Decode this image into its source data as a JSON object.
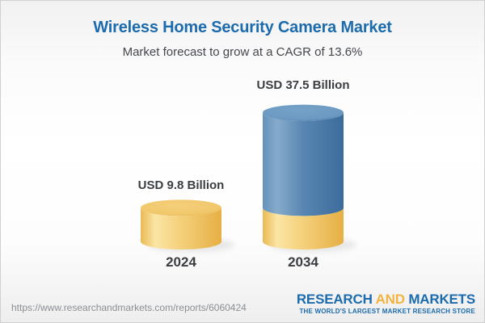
{
  "header": {
    "title": "Wireless Home Security Camera Market",
    "subtitle": "Market forecast to grow at a CAGR of 13.6%"
  },
  "chart_data": {
    "type": "bar",
    "variant": "3d-cylinder",
    "title": "Wireless Home Security Camera Market",
    "subtitle": "Market forecast to grow at a CAGR of 13.6%",
    "unit": "USD Billion",
    "cagr_percent": 13.6,
    "categories": [
      "2024",
      "2034"
    ],
    "values": [
      9.8,
      37.5
    ],
    "value_labels": [
      "USD 9.8 Billion",
      "USD 37.5 Billion"
    ],
    "base_value": 9.8,
    "legend": "none",
    "colors": {
      "base_segment_yellow": "#f2ca6e",
      "growth_segment_blue": "#5584b1"
    }
  },
  "footer": {
    "url": "https://www.researchandmarkets.com/reports/6060424",
    "logo": {
      "part1": "RESEARCH",
      "part2": "AND",
      "part3": "MARKETS",
      "tagline": "THE WORLD'S LARGEST MARKET RESEARCH STORE"
    },
    "logo_colors": {
      "blue": "#1c6bad",
      "gold": "#f0b440"
    }
  }
}
